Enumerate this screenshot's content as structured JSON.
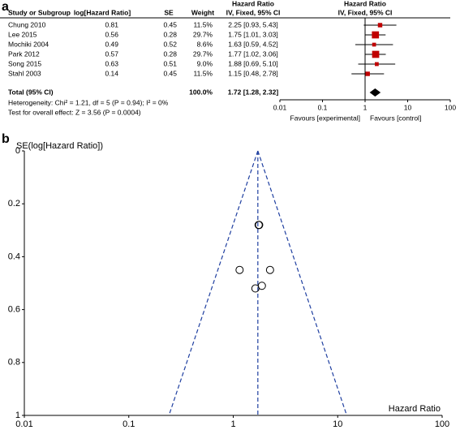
{
  "chart_data": [
    {
      "type": "forest",
      "panel_label": "a",
      "columns": [
        "Study or Subgroup",
        "log[Hazard Ratio]",
        "SE",
        "Weight"
      ],
      "ci_header": [
        "Hazard Ratio",
        "IV, Fixed, 95% CI"
      ],
      "plot_header": [
        "Hazard Ratio",
        "IV, Fixed, 95% CI"
      ],
      "categories": [
        "Chung 2010",
        "Lee 2015",
        "Mochiki 2004",
        "Park 2012",
        "Song 2015",
        "Stahl 2003"
      ],
      "log_hr": [
        0.81,
        0.56,
        0.49,
        0.57,
        0.63,
        0.14
      ],
      "se": [
        0.45,
        0.28,
        0.52,
        0.28,
        0.51,
        0.45
      ],
      "weights": [
        11.5,
        29.7,
        8.6,
        29.7,
        9.0,
        11.5
      ],
      "weight_labels": [
        "11.5%",
        "29.7%",
        "8.6%",
        "29.7%",
        "9.0%",
        "11.5%"
      ],
      "values": [
        2.25,
        1.75,
        1.63,
        1.77,
        1.88,
        1.15
      ],
      "ci_low": [
        0.93,
        1.01,
        0.59,
        1.02,
        0.69,
        0.48
      ],
      "ci_high": [
        5.43,
        3.03,
        4.52,
        3.06,
        5.1,
        2.78
      ],
      "value_labels": [
        "2.25 [0.93, 5.43]",
        "1.75 [1.01, 3.03]",
        "1.63 [0.59, 4.52]",
        "1.77 [1.02, 3.06]",
        "1.88 [0.69, 5.10]",
        "1.15 [0.48, 2.78]"
      ],
      "total": {
        "label": "Total (95% CI)",
        "weight": 100,
        "weight_label": "100.0%",
        "value": 1.72,
        "ci_low": 1.28,
        "ci_high": 2.32,
        "value_label": "1.72 [1.28, 2.32]"
      },
      "heterogeneity": "Heterogeneity: Chi² = 1.21, df = 5 (P = 0.94); I² = 0%",
      "overall_effect": "Test for overall effect: Z = 3.56 (P = 0.0004)",
      "log_x": true,
      "xlim": [
        0.01,
        100
      ],
      "xticks": [
        0.01,
        0.1,
        1,
        10,
        100
      ],
      "x_labels": [
        "Favours [experimental]",
        "Favours [control]"
      ],
      "color": "#c00000"
    },
    {
      "type": "funnel",
      "panel_label": "b",
      "y_label": "SE(log[Hazard Ratio])",
      "x_label": "Hazard Ratio",
      "x": [
        2.25,
        1.75,
        1.63,
        1.77,
        1.88,
        1.15
      ],
      "values": [
        0.45,
        0.28,
        0.52,
        0.28,
        0.51,
        0.45
      ],
      "log_x": true,
      "xlim": [
        0.01,
        100
      ],
      "xticks": [
        0.01,
        0.1,
        1,
        10,
        100
      ],
      "y_inverted": true,
      "ylim": [
        0,
        1
      ],
      "yticks": [
        0,
        0.2,
        0.4,
        0.6,
        0.8,
        1
      ],
      "color": "#1f3fa0"
    }
  ]
}
